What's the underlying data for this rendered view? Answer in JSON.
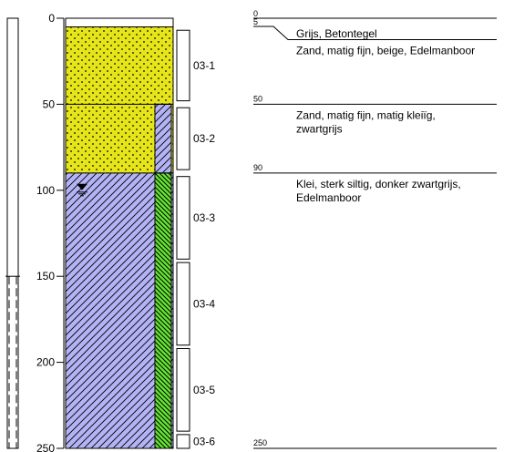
{
  "depth_axis": {
    "min": 0,
    "max": 250,
    "ticks": [
      {
        "value": 0,
        "label": "0"
      },
      {
        "value": 50,
        "label": "50"
      },
      {
        "value": 100,
        "label": "100"
      },
      {
        "value": 150,
        "label": "150"
      },
      {
        "value": 200,
        "label": "200"
      },
      {
        "value": 250,
        "label": "250"
      }
    ]
  },
  "well": {
    "casing_top": 0,
    "screen_top": 150,
    "screen_bottom": 250
  },
  "groundwater_level": 100,
  "layers": [
    {
      "id": "layer-1",
      "top": 0,
      "bottom": 5,
      "fill": "#ffffff",
      "pattern": "none",
      "depth_label": "0",
      "bottom_label": "5",
      "description": "Grijs, Betontegel"
    },
    {
      "id": "layer-2",
      "top": 5,
      "bottom": 50,
      "fill": "#e5e51a",
      "pattern": "dots",
      "depth_label": "5",
      "description": "Zand, matig fijn, beige, Edelmanboor"
    },
    {
      "id": "layer-3",
      "top": 50,
      "bottom": 90,
      "fill": "#e5e51a",
      "pattern": "dots",
      "depth_label": "50",
      "description_lines": [
        "Zand, matig fijn, matig kleiïg,",
        "zwartgrijs"
      ]
    },
    {
      "id": "layer-4",
      "top": 90,
      "bottom": 250,
      "fill": "#b3b3f5",
      "pattern": "hatch",
      "depth_label": "90",
      "description_lines": [
        "Klei, sterk siltig, donker zwartgrijs,",
        "Edelmanboor"
      ]
    }
  ],
  "side_column": [
    {
      "top": 50,
      "bottom": 90,
      "fill": "#b3b3f5",
      "pattern": "hatch"
    },
    {
      "top": 90,
      "bottom": 250,
      "fill": "#66e633",
      "pattern": "hatch-dense"
    }
  ],
  "end_depth_label": "250",
  "samples": [
    {
      "id": "03-1",
      "top": 7,
      "bottom": 48
    },
    {
      "id": "03-2",
      "top": 52,
      "bottom": 88
    },
    {
      "id": "03-3",
      "top": 92,
      "bottom": 140
    },
    {
      "id": "03-4",
      "top": 142,
      "bottom": 190
    },
    {
      "id": "03-5",
      "top": 192,
      "bottom": 240
    },
    {
      "id": "03-6",
      "top": 242,
      "bottom": 250
    }
  ],
  "colors": {
    "sand": "#e5e51a",
    "clay": "#b3b3f5",
    "peat_band": "#66e633"
  }
}
